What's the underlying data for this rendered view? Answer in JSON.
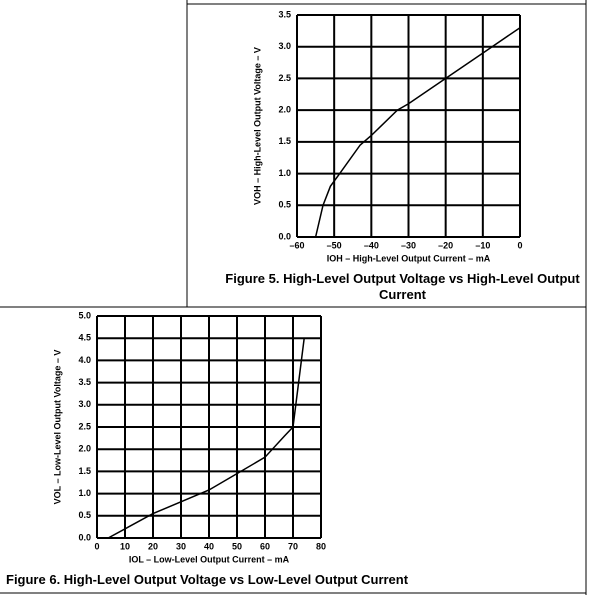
{
  "chart_data": [
    {
      "type": "line",
      "title": "Figure 5. High-Level Output Voltage vs High-Level Output Current",
      "x_label": "IOH – High-Level Output Current – mA",
      "y_label": "VOH – High-Level Output Voltage – V",
      "x": [
        -55,
        -53,
        -51,
        -48.5,
        -43,
        -40,
        -33,
        -30,
        -20,
        -10,
        0
      ],
      "values": [
        0,
        0.5,
        0.8,
        1.0,
        1.45,
        1.6,
        2.0,
        2.1,
        2.5,
        2.9,
        3.3
      ],
      "color": "#000000",
      "xlim": [
        -60,
        0
      ],
      "ylim": [
        0,
        3.5
      ],
      "xticks": [
        {
          "value": -60,
          "label": "–60"
        },
        {
          "value": -50,
          "label": "–50"
        },
        {
          "value": -40,
          "label": "–40"
        },
        {
          "value": -30,
          "label": "–30"
        },
        {
          "value": -20,
          "label": "–20"
        },
        {
          "value": -10,
          "label": "–10"
        },
        0
      ],
      "yticks": [
        {
          "value": 0,
          "label": "0.0"
        },
        0.5,
        {
          "value": 1,
          "label": "1.0"
        },
        1.5,
        {
          "value": 2,
          "label": "2.0"
        },
        2.5,
        {
          "value": 3,
          "label": "3.0"
        },
        3.5
      ],
      "grid": true
    },
    {
      "type": "line",
      "title": "Figure 6. High-Level Output Voltage vs Low-Level Output Current",
      "x_label": "IOL – Low-Level Output Current – mA",
      "y_label": "VOL – Low-Level Output Voltage – V",
      "x": [
        4,
        20,
        40,
        50,
        60,
        67,
        70,
        71,
        72,
        73,
        74
      ],
      "values": [
        0,
        0.55,
        1.08,
        1.45,
        1.82,
        2.3,
        2.5,
        3.0,
        3.5,
        4.0,
        4.5
      ],
      "color": "#000000",
      "xlim": [
        0,
        80
      ],
      "ylim": [
        0,
        5
      ],
      "xticks": [
        0,
        10,
        20,
        30,
        40,
        50,
        60,
        70,
        80
      ],
      "yticks": [
        {
          "value": 0,
          "label": "0.0"
        },
        0.5,
        {
          "value": 1,
          "label": "1.0"
        },
        1.5,
        {
          "value": 2,
          "label": "2.0"
        },
        2.5,
        {
          "value": 3,
          "label": "3.0"
        },
        3.5,
        {
          "value": 4,
          "label": "4.0"
        },
        4.5,
        {
          "value": 5,
          "label": "5.0"
        }
      ],
      "grid": true
    }
  ]
}
